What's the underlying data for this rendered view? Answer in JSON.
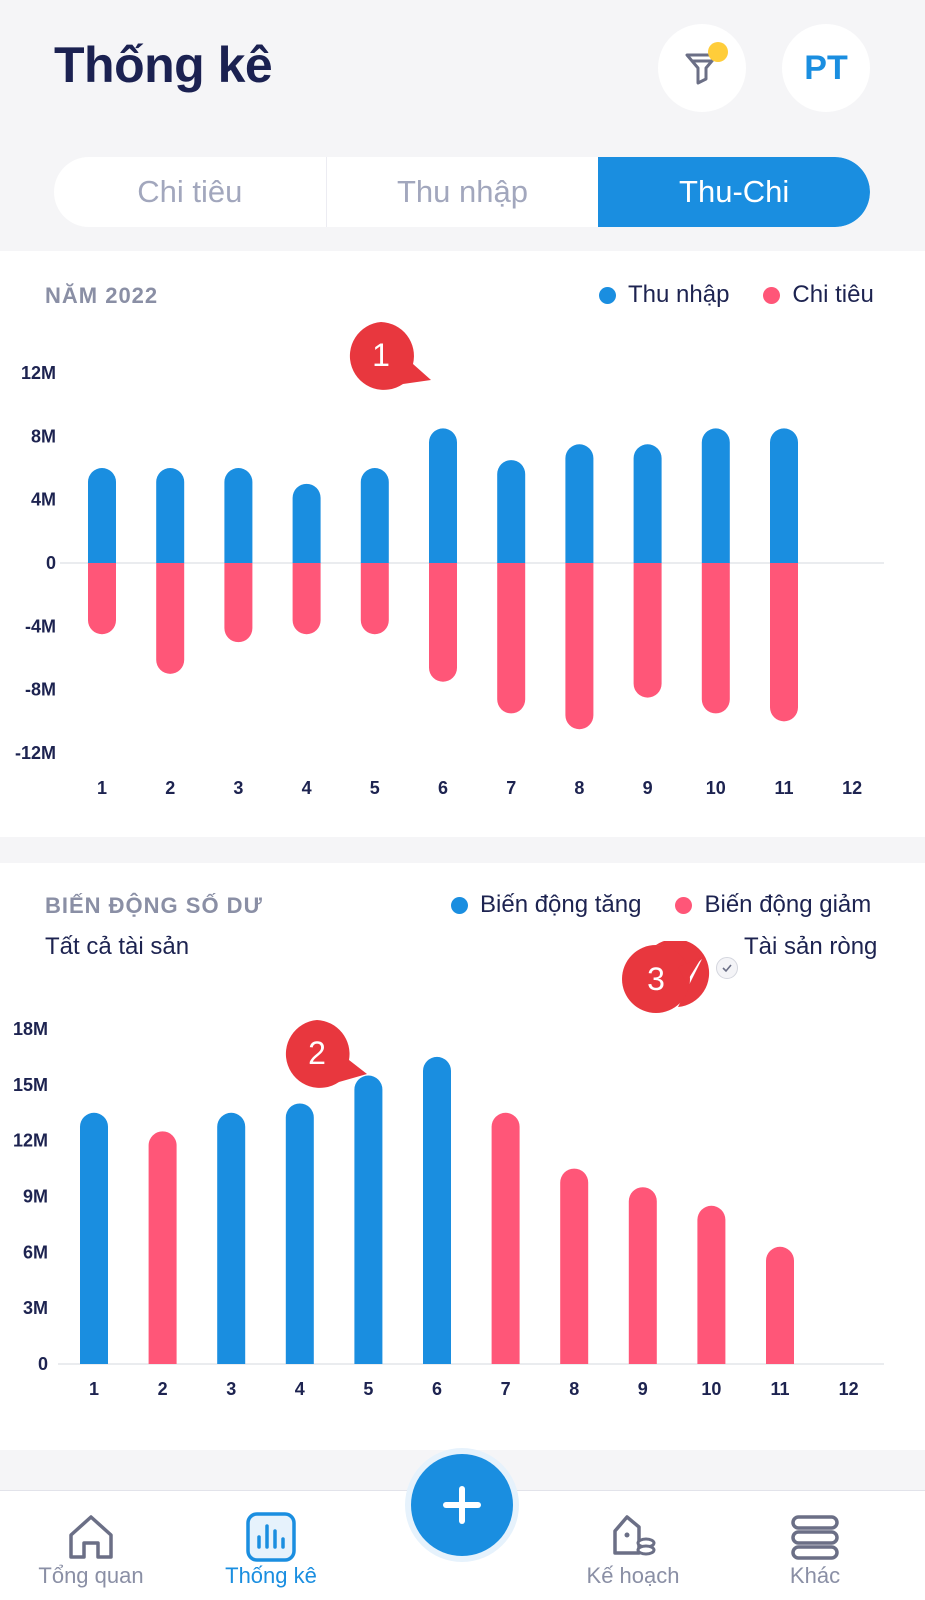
{
  "header": {
    "title": "Thống kê",
    "avatar_initials": "PT",
    "filter_icon": "filter-icon",
    "filter_badge_color": "#ffcd3a"
  },
  "tabs": [
    {
      "label": "Chi tiêu",
      "active": false
    },
    {
      "label": "Thu nhập",
      "active": false
    },
    {
      "label": "Thu-Chi",
      "active": true
    }
  ],
  "colors": {
    "blue": "#1a8ee0",
    "pink": "#ff5678",
    "callout": "#e8373e"
  },
  "income_expense": {
    "label": "NĂM  2022",
    "legend": [
      "Thu nhập",
      "Chi tiêu"
    ],
    "callout": "1"
  },
  "balance": {
    "label": "BIẾN ĐỘNG SỐ DƯ",
    "legend": [
      "Biến động tăng",
      "Biến động giảm"
    ],
    "scope": "Tất cả tài sản",
    "net_assets_label": "Tài sản ròng",
    "callout_bar": "2",
    "callout_check": "3"
  },
  "chart_data": [
    {
      "type": "bar",
      "categories": [
        "1",
        "2",
        "3",
        "4",
        "5",
        "6",
        "7",
        "8",
        "9",
        "10",
        "11",
        "12"
      ],
      "series": [
        {
          "name": "Thu nhập",
          "values": [
            6,
            6,
            6,
            5,
            6,
            8.5,
            6.5,
            7.5,
            7.5,
            8.5,
            8.5,
            0
          ]
        },
        {
          "name": "Chi tiêu",
          "values": [
            -4.5,
            -7,
            -5,
            -4.5,
            -4.5,
            -7.5,
            -9.5,
            -10.5,
            -8.5,
            -9.5,
            -10,
            0
          ]
        }
      ],
      "yticks": [
        "12M",
        "8M",
        "4M",
        "0",
        "-4M",
        "-8M",
        "-12M"
      ],
      "ylim": [
        -12,
        12
      ]
    },
    {
      "type": "bar",
      "categories": [
        "1",
        "2",
        "3",
        "4",
        "5",
        "6",
        "7",
        "8",
        "9",
        "10",
        "11",
        "12"
      ],
      "series": [
        {
          "name": "Biến động tăng",
          "values": [
            13.5,
            null,
            13.5,
            14,
            15.5,
            16.5,
            null,
            null,
            null,
            null,
            null,
            null
          ]
        },
        {
          "name": "Biến động giảm",
          "values": [
            null,
            12.5,
            null,
            null,
            null,
            null,
            13.5,
            10.5,
            9.5,
            8.5,
            6.3,
            null
          ]
        }
      ],
      "yticks": [
        "18M",
        "15M",
        "12M",
        "9M",
        "6M",
        "3M",
        "0"
      ],
      "ylim": [
        0,
        18
      ]
    }
  ],
  "nav": [
    {
      "label": "Tổng quan",
      "icon": "home-icon",
      "active": false
    },
    {
      "label": "Thống kê",
      "icon": "bar-chart-icon",
      "active": true
    },
    {
      "label": "Kế hoạch",
      "icon": "piggy-bank-icon",
      "active": false
    },
    {
      "label": "Khác",
      "icon": "menu-icon",
      "active": false
    }
  ],
  "fab_icon": "plus-icon"
}
